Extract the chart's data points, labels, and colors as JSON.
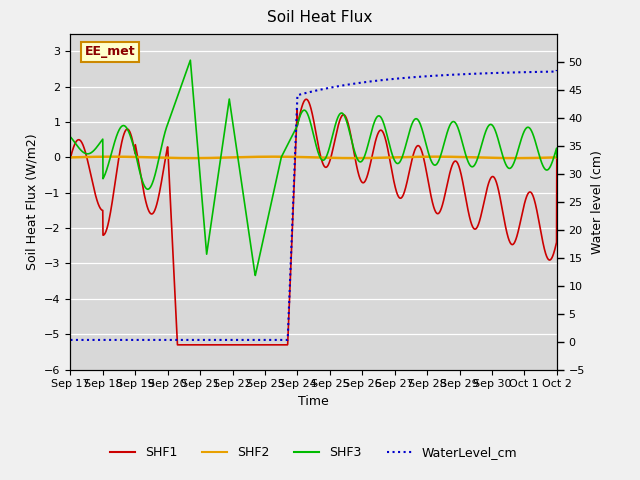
{
  "title": "Soil Heat Flux",
  "ylabel_left": "Soil Heat Flux (W/m2)",
  "ylabel_right": "Water level (cm)",
  "xlabel": "Time",
  "ylim_left": [
    -6.0,
    3.5
  ],
  "ylim_right": [
    -5,
    55
  ],
  "background_color": "#f0f0f0",
  "plot_bg_color": "#d8d8d8",
  "annotation_box": "EE_met",
  "x_tick_labels": [
    "Sep 17",
    "Sep 18",
    "Sep 19",
    "Sep 20",
    "Sep 21",
    "Sep 22",
    "Sep 23",
    "Sep 24",
    "Sep 25",
    "Sep 26",
    "Sep 27",
    "Sep 28",
    "Sep 29",
    "Sep 30",
    "Oct 1",
    "Oct 2"
  ],
  "yticks_left": [
    -6.0,
    -5.0,
    -4.0,
    -3.0,
    -2.0,
    -1.0,
    0.0,
    1.0,
    2.0,
    3.0
  ],
  "yticks_right": [
    -5,
    0,
    5,
    10,
    15,
    20,
    25,
    30,
    35,
    40,
    45,
    50
  ],
  "shf1_color": "#cc0000",
  "shf2_color": "#e8a000",
  "shf3_color": "#00bb00",
  "wl_color": "#0000cc",
  "legend_labels": [
    "SHF1",
    "SHF2",
    "SHF3",
    "WaterLevel_cm"
  ],
  "n_days": 15
}
